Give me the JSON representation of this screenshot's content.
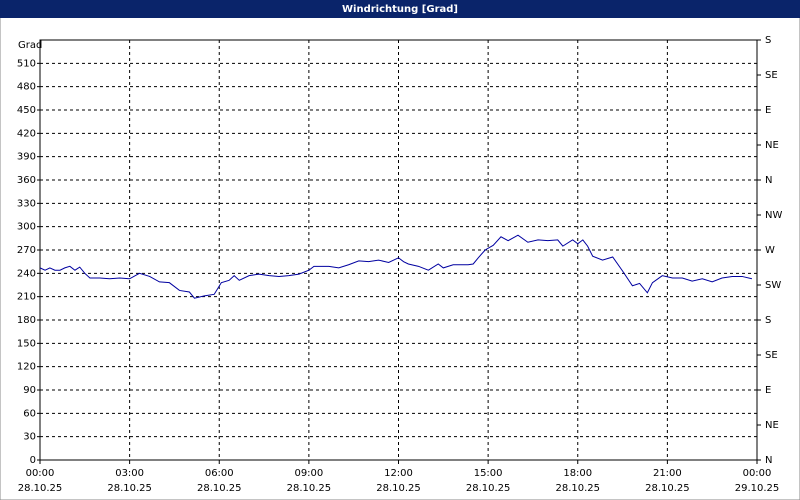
{
  "chart_data": {
    "type": "line",
    "title": "Windrichtung [Grad]",
    "y_label": "Grad",
    "x": [
      0,
      0.17,
      0.33,
      0.5,
      0.67,
      0.83,
      1,
      1.17,
      1.33,
      1.5,
      1.67,
      2,
      2.33,
      2.67,
      3,
      3.33,
      3.67,
      4,
      4.33,
      4.67,
      5,
      5.17,
      5.5,
      5.83,
      6.07,
      6.33,
      6.5,
      6.67,
      7,
      7.33,
      7.67,
      8,
      8.33,
      8.67,
      9,
      9.17,
      9.67,
      10,
      10.33,
      10.67,
      11,
      11.33,
      11.67,
      12,
      12.17,
      12.33,
      12.67,
      13,
      13.33,
      13.5,
      13.83,
      14.33,
      14.5,
      14.67,
      14.9,
      15.17,
      15.43,
      15.67,
      16,
      16.33,
      16.67,
      17,
      17.33,
      17.5,
      17.83,
      18,
      18.17,
      18.33,
      18.5,
      18.83,
      19.17,
      19.5,
      19.83,
      20.07,
      20.33,
      20.5,
      20.83,
      21.17,
      21.5,
      21.83,
      22.17,
      22.5,
      22.83,
      23.17,
      23.5,
      23.83
    ],
    "values": [
      247,
      244,
      247,
      244,
      244,
      247,
      249,
      244,
      248,
      240,
      234,
      234,
      233,
      234,
      233,
      240,
      236,
      229,
      228,
      218,
      216,
      208,
      211,
      213,
      228,
      231,
      237,
      231,
      237,
      239,
      237,
      236,
      237,
      239,
      244,
      249,
      249,
      247,
      251,
      256,
      255,
      257,
      254,
      260,
      255,
      252,
      249,
      244,
      252,
      247,
      251,
      251,
      252,
      260,
      270,
      276,
      287,
      282,
      289,
      280,
      283,
      282,
      283,
      275,
      283,
      278,
      283,
      275,
      262,
      257,
      261,
      243,
      224,
      227,
      215,
      228,
      237,
      234,
      234,
      230,
      233,
      229,
      234,
      236,
      236,
      233
    ],
    "color": "#0000a0",
    "xlim": [
      0,
      24
    ],
    "xticks": [
      {
        "value": 0,
        "label": "00:00"
      },
      {
        "value": 3,
        "label": "03:00"
      },
      {
        "value": 6,
        "label": "06:00"
      },
      {
        "value": 9,
        "label": "09:00"
      },
      {
        "value": 12,
        "label": "12:00"
      },
      {
        "value": 15,
        "label": "15:00"
      },
      {
        "value": 18,
        "label": "18:00"
      },
      {
        "value": 21,
        "label": "21:00"
      },
      {
        "value": 24,
        "label": "00:00"
      }
    ],
    "xtick_dates": [
      "28.10.25",
      "28.10.25",
      "28.10.25",
      "28.10.25",
      "28.10.25",
      "28.10.25",
      "28.10.25",
      "28.10.25",
      "29.10.25"
    ],
    "ylim": [
      0,
      540
    ],
    "yticks": [
      0,
      30,
      60,
      90,
      120,
      150,
      180,
      210,
      240,
      270,
      300,
      330,
      360,
      390,
      420,
      450,
      480,
      510
    ],
    "y2lim": [
      0,
      540
    ],
    "y2ticks": [
      {
        "value": 0,
        "label": "N"
      },
      {
        "value": 45,
        "label": "NE"
      },
      {
        "value": 90,
        "label": "E"
      },
      {
        "value": 135,
        "label": "SE"
      },
      {
        "value": 180,
        "label": "S"
      },
      {
        "value": 225,
        "label": "SW"
      },
      {
        "value": 270,
        "label": "W"
      },
      {
        "value": 315,
        "label": "NW"
      },
      {
        "value": 360,
        "label": "N"
      },
      {
        "value": 405,
        "label": "NE"
      },
      {
        "value": 450,
        "label": "E"
      },
      {
        "value": 495,
        "label": "SE"
      },
      {
        "value": 540,
        "label": "S"
      }
    ],
    "grid": true
  }
}
